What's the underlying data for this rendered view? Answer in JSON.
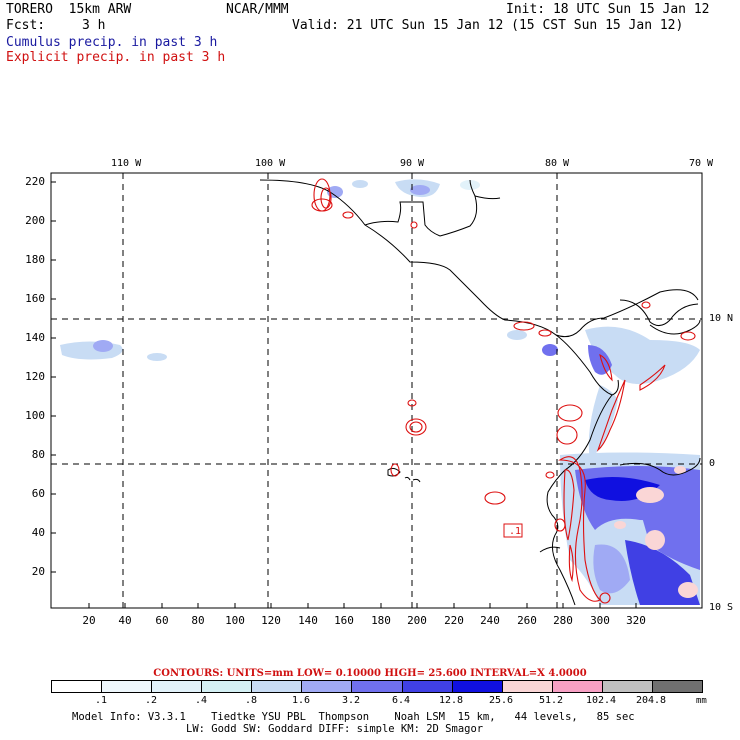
{
  "header": {
    "model": "TORERO  15km ARW",
    "center": "NCAR/MMM",
    "init": "Init: 18 UTC Sun 15 Jan 12",
    "fcst_label": "Fcst:",
    "fcst_value": "3 h",
    "valid": "Valid: 21 UTC Sun 15 Jan 12 (15 CST Sun 15 Jan 12)",
    "field1": "Cumulus precip. in past 3 h",
    "field2": "Explicit precip. in past 3 h"
  },
  "map": {
    "lon_labels": [
      "110 W",
      "100 W",
      "90 W",
      "80 W",
      "70 W"
    ],
    "lat_labels": [
      "10 N",
      "0",
      "10 S"
    ],
    "y_ticks": [
      "220",
      "200",
      "180",
      "160",
      "140",
      "120",
      "100",
      "80",
      "60",
      "40",
      "20"
    ],
    "x_ticks": [
      "20",
      "40",
      "60",
      "80",
      "100",
      "120",
      "140",
      "160",
      "180",
      "200",
      "220",
      "240",
      "260",
      "280",
      "300",
      "320"
    ],
    "box_label": ".1"
  },
  "contours": {
    "text": "CONTOURS:  UNITS=mm  LOW= 0.10000     HIGH=  25.600     INTERVAL=X  4.0000"
  },
  "legend": {
    "colors": [
      "#ffffff",
      "#eef7fc",
      "#e2f2fa",
      "#d4f0f4",
      "#c8dcf4",
      "#a0aaf4",
      "#7070ee",
      "#4040e4",
      "#1010e0",
      "#fad6d6",
      "#f7a0c4",
      "#c0c0c0",
      "#707070",
      "#282828",
      "#d0a4f4"
    ],
    "values": [
      ".1",
      ".2",
      ".4",
      ".8",
      "1.6",
      "3.2",
      "6.4",
      "12.8",
      "25.6",
      "51.2",
      "102.4",
      "204.8"
    ],
    "units": "mm"
  },
  "footer": {
    "line1": "Model Info: V3.3.1    Tiedtke YSU PBL  Thompson    Noah LSM  15 km,   44 levels,   85 sec",
    "line2": "LW: Godd SW: Goddard DIFF: simple KM: 2D Smagor"
  }
}
